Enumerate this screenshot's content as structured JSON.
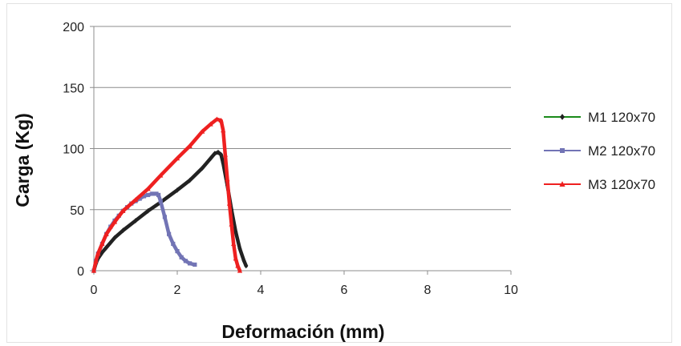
{
  "chart_data": {
    "type": "line",
    "title": "",
    "xlabel": "Deformación (mm)",
    "ylabel": "Carga (Kg)",
    "xlim": [
      0,
      10
    ],
    "ylim": [
      0,
      200
    ],
    "x_ticks": [
      "0",
      "2",
      "4",
      "6",
      "8",
      "10"
    ],
    "y_ticks": [
      "0",
      "50",
      "100",
      "150",
      "200"
    ],
    "grid": "horizontal",
    "legend_position": "right",
    "series": [
      {
        "name": "M1 120x70",
        "color": "#222222",
        "legend_color": "#1a8a1a",
        "marker": "diamond",
        "points": [
          [
            0,
            0
          ],
          [
            0.05,
            6
          ],
          [
            0.1,
            10
          ],
          [
            0.2,
            15
          ],
          [
            0.3,
            19
          ],
          [
            0.4,
            23
          ],
          [
            0.5,
            27
          ],
          [
            0.7,
            33
          ],
          [
            1.0,
            41
          ],
          [
            1.3,
            49
          ],
          [
            1.6,
            56
          ],
          [
            2.0,
            66
          ],
          [
            2.3,
            74
          ],
          [
            2.6,
            84
          ],
          [
            2.8,
            92
          ],
          [
            2.9,
            96
          ],
          [
            2.98,
            97
          ],
          [
            3.05,
            95
          ],
          [
            3.1,
            88
          ],
          [
            3.2,
            70
          ],
          [
            3.3,
            50
          ],
          [
            3.4,
            32
          ],
          [
            3.5,
            18
          ],
          [
            3.6,
            8
          ],
          [
            3.65,
            4
          ]
        ]
      },
      {
        "name": "M2 120x70",
        "color": "#7274b5",
        "marker": "square",
        "points": [
          [
            0,
            0
          ],
          [
            0.05,
            8
          ],
          [
            0.1,
            14
          ],
          [
            0.2,
            22
          ],
          [
            0.3,
            30
          ],
          [
            0.4,
            36
          ],
          [
            0.5,
            41
          ],
          [
            0.6,
            45
          ],
          [
            0.7,
            49
          ],
          [
            0.8,
            52
          ],
          [
            0.9,
            55
          ],
          [
            1.0,
            57
          ],
          [
            1.1,
            59
          ],
          [
            1.2,
            61
          ],
          [
            1.3,
            62
          ],
          [
            1.4,
            63
          ],
          [
            1.5,
            63
          ],
          [
            1.55,
            62
          ],
          [
            1.6,
            57
          ],
          [
            1.7,
            44
          ],
          [
            1.8,
            30
          ],
          [
            1.9,
            22
          ],
          [
            2.0,
            16
          ],
          [
            2.1,
            11
          ],
          [
            2.2,
            8
          ],
          [
            2.3,
            6
          ],
          [
            2.42,
            5
          ]
        ]
      },
      {
        "name": "M3 120x70",
        "color": "#ee2020",
        "marker": "triangle",
        "points": [
          [
            0,
            0
          ],
          [
            0.05,
            8
          ],
          [
            0.1,
            14
          ],
          [
            0.2,
            22
          ],
          [
            0.3,
            30
          ],
          [
            0.5,
            40
          ],
          [
            0.7,
            49
          ],
          [
            1.0,
            58
          ],
          [
            1.3,
            67
          ],
          [
            1.6,
            78
          ],
          [
            2.0,
            92
          ],
          [
            2.3,
            102
          ],
          [
            2.6,
            114
          ],
          [
            2.8,
            120
          ],
          [
            2.95,
            124
          ],
          [
            3.05,
            123
          ],
          [
            3.1,
            115
          ],
          [
            3.15,
            95
          ],
          [
            3.2,
            75
          ],
          [
            3.25,
            55
          ],
          [
            3.3,
            38
          ],
          [
            3.35,
            22
          ],
          [
            3.4,
            10
          ],
          [
            3.45,
            4
          ],
          [
            3.5,
            0
          ]
        ]
      }
    ]
  }
}
